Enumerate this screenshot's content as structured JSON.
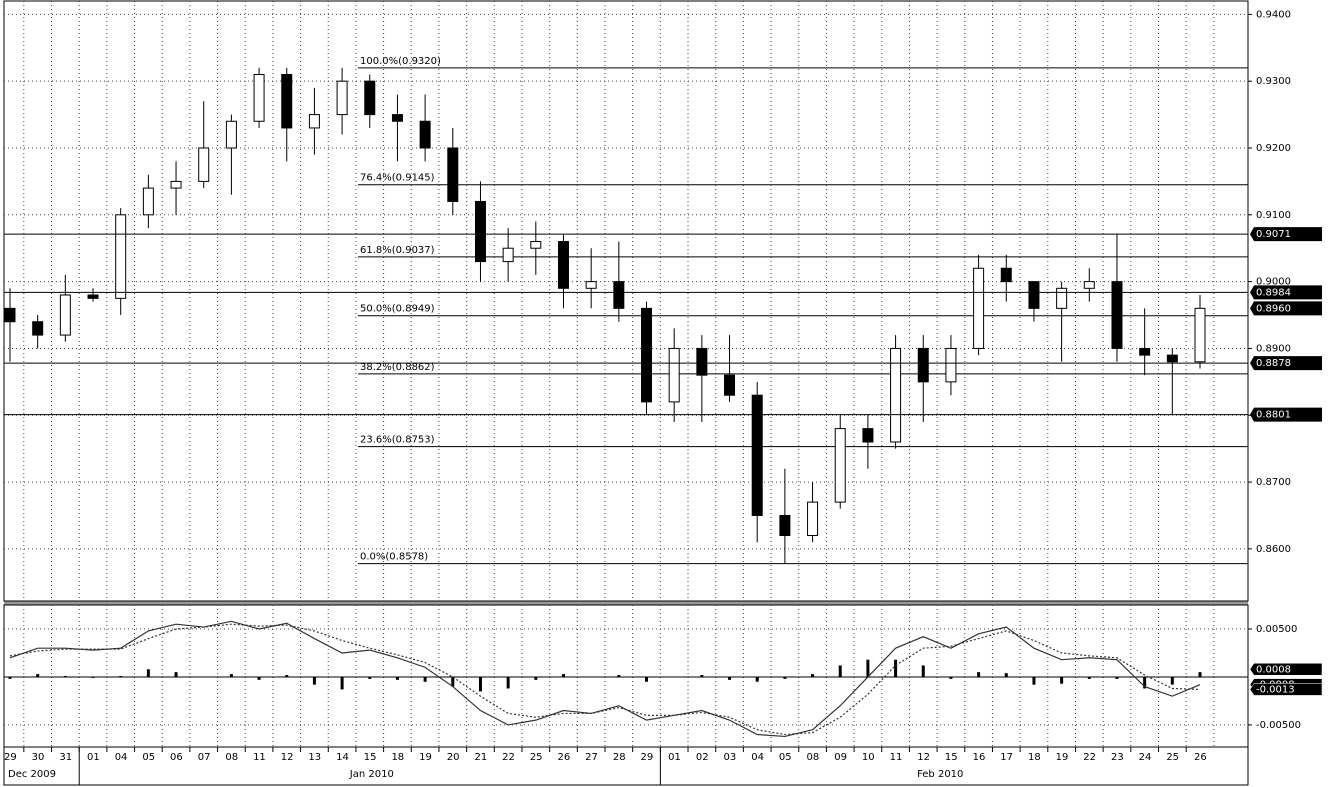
{
  "chart_data": {
    "type": "candlestick",
    "categories": [
      "29",
      "30",
      "31",
      "01",
      "04",
      "05",
      "06",
      "07",
      "08",
      "11",
      "12",
      "13",
      "14",
      "15",
      "18",
      "19",
      "20",
      "21",
      "22",
      "25",
      "26",
      "27",
      "28",
      "29",
      "01",
      "02",
      "03",
      "04",
      "05",
      "08",
      "09",
      "10",
      "11",
      "12",
      "15",
      "16",
      "17",
      "18",
      "19",
      "22",
      "23",
      "24",
      "25",
      "26"
    ],
    "months": [
      "Dec 2009",
      "Jan 2010",
      "Feb 2010"
    ],
    "open": [
      0.896,
      0.894,
      0.892,
      0.898,
      0.8975,
      0.91,
      0.914,
      0.915,
      0.92,
      0.924,
      0.931,
      0.923,
      0.925,
      0.93,
      0.925,
      0.924,
      0.92,
      0.912,
      0.903,
      0.905,
      0.906,
      0.899,
      0.9,
      0.896,
      0.882,
      0.89,
      0.886,
      0.883,
      0.865,
      0.862,
      0.867,
      0.878,
      0.876,
      0.89,
      0.885,
      0.89,
      0.902,
      0.9,
      0.896,
      0.899,
      0.9,
      0.89,
      0.889,
      0.888
    ],
    "high": [
      0.899,
      0.895,
      0.901,
      0.899,
      0.911,
      0.916,
      0.918,
      0.927,
      0.925,
      0.932,
      0.932,
      0.929,
      0.932,
      0.931,
      0.928,
      0.928,
      0.923,
      0.915,
      0.908,
      0.909,
      0.907,
      0.905,
      0.906,
      0.897,
      0.893,
      0.892,
      0.892,
      0.885,
      0.872,
      0.87,
      0.88,
      0.88,
      0.892,
      0.892,
      0.892,
      0.904,
      0.904,
      0.9,
      0.9,
      0.902,
      0.9071,
      0.896,
      0.89,
      0.898
    ],
    "low": [
      0.888,
      0.89,
      0.891,
      0.897,
      0.895,
      0.908,
      0.91,
      0.914,
      0.913,
      0.923,
      0.918,
      0.919,
      0.922,
      0.923,
      0.918,
      0.918,
      0.91,
      0.9,
      0.9,
      0.901,
      0.896,
      0.896,
      0.894,
      0.88,
      0.879,
      0.879,
      0.882,
      0.861,
      0.8578,
      0.861,
      0.866,
      0.872,
      0.875,
      0.879,
      0.883,
      0.889,
      0.897,
      0.894,
      0.888,
      0.897,
      0.888,
      0.886,
      0.8801,
      0.887
    ],
    "close": [
      0.894,
      0.892,
      0.898,
      0.8975,
      0.91,
      0.914,
      0.915,
      0.92,
      0.924,
      0.931,
      0.923,
      0.925,
      0.93,
      0.925,
      0.924,
      0.92,
      0.912,
      0.903,
      0.905,
      0.906,
      0.899,
      0.9,
      0.896,
      0.882,
      0.89,
      0.886,
      0.883,
      0.865,
      0.862,
      0.867,
      0.878,
      0.876,
      0.89,
      0.885,
      0.89,
      0.902,
      0.9,
      0.896,
      0.899,
      0.9,
      0.89,
      0.889,
      0.888,
      0.896
    ],
    "up_color": "#ffffff",
    "down_color": "#000000",
    "ylim": [
      0.8522,
      0.942
    ],
    "yticks": [
      {
        "value": 0.94,
        "label": "0.9400"
      },
      {
        "value": 0.93,
        "label": "0.9300"
      },
      {
        "value": 0.92,
        "label": "0.9200"
      },
      {
        "value": 0.91,
        "label": "0.9100"
      },
      {
        "value": 0.9,
        "label": "0.9000"
      },
      {
        "value": 0.89,
        "label": "0.8900"
      },
      {
        "value": 0.88,
        "label": "0.8800"
      },
      {
        "value": 0.87,
        "label": "0.8700"
      },
      {
        "value": 0.86,
        "label": "0.8600"
      }
    ],
    "grid": true,
    "fib_levels": [
      {
        "value": 0.932,
        "label": "100.0%(0.9320)"
      },
      {
        "value": 0.9145,
        "label": "76.4%(0.9145)"
      },
      {
        "value": 0.9037,
        "label": "61.8%(0.9037)"
      },
      {
        "value": 0.8949,
        "label": "50.0%(0.8949)"
      },
      {
        "value": 0.8862,
        "label": "38.2%(0.8862)"
      },
      {
        "value": 0.8753,
        "label": "23.6%(0.8753)"
      },
      {
        "value": 0.8578,
        "label": "0.0%(0.8578)"
      }
    ],
    "price_markers": [
      {
        "value": 0.9071,
        "label": "0.9071",
        "line": true
      },
      {
        "value": 0.8984,
        "label": "0.8984",
        "line": true
      },
      {
        "value": 0.896,
        "label": "0.8960",
        "line": false
      },
      {
        "value": 0.8878,
        "label": "0.8878",
        "line": true
      },
      {
        "value": 0.8801,
        "label": "0.8801",
        "line": true
      }
    ],
    "macd": {
      "ylim": [
        -0.0073,
        0.0075
      ],
      "yticks": [
        {
          "value": 0.005,
          "label": "0.00500"
        },
        {
          "value": -0.005,
          "label": "-0.00500"
        }
      ],
      "series": [
        {
          "name": "MACD",
          "color": "#333333",
          "values": [
            0.002,
            0.003,
            0.003,
            0.0028,
            0.003,
            0.0048,
            0.0055,
            0.0052,
            0.0058,
            0.005,
            0.0056,
            0.004,
            0.0025,
            0.0028,
            0.002,
            0.001,
            -0.001,
            -0.0035,
            -0.005,
            -0.0045,
            -0.0035,
            -0.0038,
            -0.003,
            -0.0045,
            -0.004,
            -0.0035,
            -0.0045,
            -0.006,
            -0.0062,
            -0.0055,
            -0.003,
            0.0,
            0.003,
            0.0042,
            0.003,
            0.0045,
            0.0052,
            0.003,
            0.0018,
            0.002,
            0.0018,
            -0.001,
            -0.002,
            -0.0008
          ]
        },
        {
          "name": "Signal",
          "color": "#333333",
          "values": [
            0.0022,
            0.0027,
            0.0029,
            0.0029,
            0.0029,
            0.004,
            0.005,
            0.0052,
            0.0055,
            0.0053,
            0.0054,
            0.0048,
            0.0038,
            0.003,
            0.0023,
            0.0015,
            0.0,
            -0.002,
            -0.0038,
            -0.0042,
            -0.0038,
            -0.0038,
            -0.0032,
            -0.004,
            -0.004,
            -0.0037,
            -0.0042,
            -0.0055,
            -0.006,
            -0.0058,
            -0.0042,
            -0.0018,
            0.0012,
            0.003,
            0.0032,
            0.004,
            0.0048,
            0.0038,
            0.0025,
            0.0022,
            0.002,
            0.0002,
            -0.0012,
            -0.0013
          ]
        }
      ],
      "histogram": {
        "color": "#000000",
        "values": [
          -0.0002,
          0.0003,
          0.0001,
          -0.0001,
          0.0001,
          0.0008,
          0.0005,
          0.0,
          0.0003,
          -0.0003,
          0.0002,
          -0.0008,
          -0.0013,
          -0.0002,
          -0.0003,
          -0.0005,
          -0.001,
          -0.0015,
          -0.0012,
          -0.0003,
          0.0003,
          0.0,
          0.0002,
          -0.0005,
          0.0,
          0.0002,
          -0.0003,
          -0.0005,
          -0.0002,
          0.0003,
          0.0012,
          0.0018,
          0.0018,
          0.0012,
          -0.0002,
          0.0005,
          0.0004,
          -0.0008,
          -0.0007,
          -0.0002,
          -0.0002,
          -0.0012,
          -0.0008,
          0.0005
        ]
      },
      "markers": [
        {
          "value": 0.0008,
          "label": "0.0008"
        },
        {
          "value": -0.0008,
          "label": "-0.0008"
        },
        {
          "value": -0.0013,
          "label": "-0.0013"
        }
      ]
    }
  }
}
